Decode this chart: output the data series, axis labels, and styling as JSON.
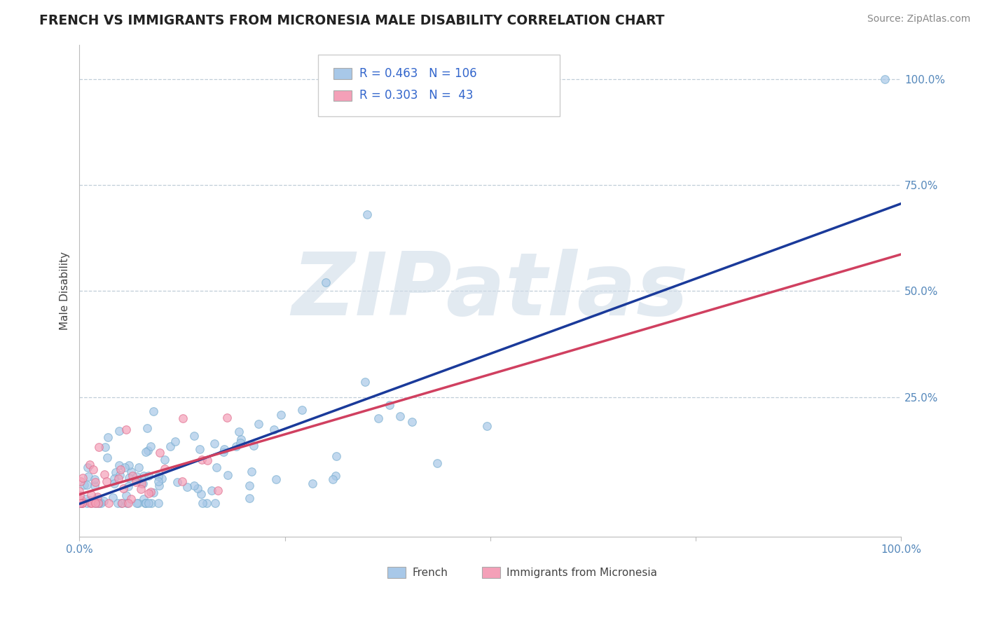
{
  "title": "FRENCH VS IMMIGRANTS FROM MICRONESIA MALE DISABILITY CORRELATION CHART",
  "source_text": "Source: ZipAtlas.com",
  "ylabel": "Male Disability",
  "xlim": [
    0.0,
    1.0
  ],
  "ylim": [
    -0.08,
    1.08
  ],
  "french_R": 0.463,
  "french_N": 106,
  "micro_R": 0.303,
  "micro_N": 43,
  "french_color": "#a8c8e8",
  "french_edge_color": "#7aafd0",
  "micro_color": "#f4a0b8",
  "micro_edge_color": "#e07090",
  "french_line_color": "#1a3a9a",
  "micro_line_color": "#d04060",
  "watermark_text": "ZIPatlas",
  "watermark_color": "#d0dce8",
  "legend_label_french": "French",
  "legend_label_micro": "Immigrants from Micronesia",
  "legend_text_color": "#3366cc",
  "grid_color": "#c0ced8",
  "ytick_labels": [
    "",
    "25.0%",
    "50.0%",
    "75.0%",
    "100.0%"
  ],
  "xtick_labels": [
    "0.0%",
    "",
    "",
    "",
    "100.0%"
  ],
  "tick_color": "#5588bb",
  "title_color": "#222222",
  "source_color": "#888888",
  "marker_size": 70,
  "marker_alpha": 0.7,
  "line_width": 2.5
}
